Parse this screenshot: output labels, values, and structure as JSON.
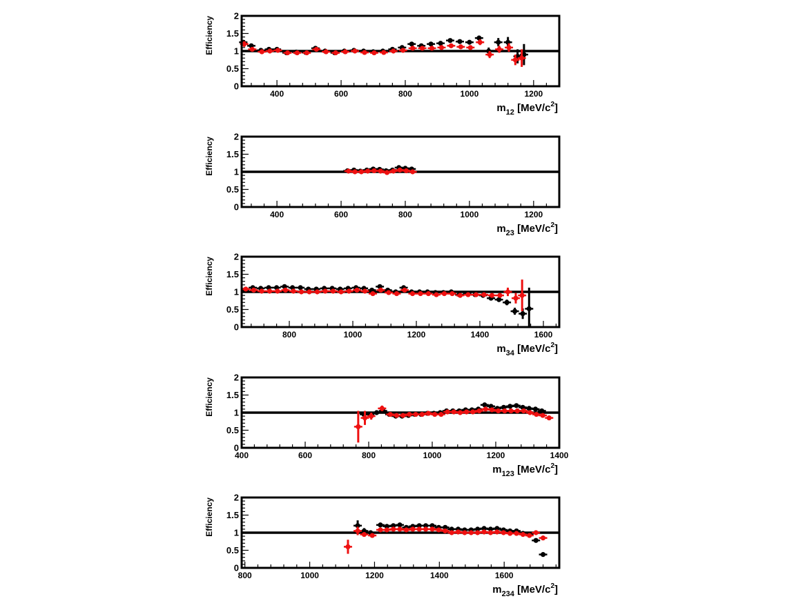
{
  "colors": {
    "series_black": "#000000",
    "series_red": "#ee1111",
    "reference_line": "#000000"
  },
  "chart_data": [
    {
      "type": "scatter",
      "ylabel": "Efficiency",
      "xlabel_main": "m",
      "xlabel_sub": "12",
      "xlabel_unit": " [MeV/c",
      "xlabel_sup": "2",
      "xlabel_close": "]",
      "xlim": [
        290,
        1280
      ],
      "ylim": [
        0,
        2
      ],
      "xticks": [
        400,
        600,
        800,
        1000,
        1200
      ],
      "yticks": [
        0,
        0.5,
        1,
        1.5,
        2
      ],
      "reference_y": 1,
      "series": [
        {
          "color": "black",
          "x": [
            295,
            320,
            350,
            375,
            400,
            430,
            460,
            490,
            520,
            550,
            580,
            610,
            640,
            670,
            700,
            730,
            760,
            790,
            820,
            850,
            880,
            910,
            940,
            970,
            1000,
            1030,
            1060,
            1090,
            1120,
            1150,
            1170
          ],
          "y": [
            1.25,
            1.15,
            1.02,
            1.05,
            1.05,
            0.95,
            0.97,
            0.96,
            1.08,
            1.0,
            0.95,
            1.0,
            1.02,
            1.0,
            0.98,
            1.0,
            1.05,
            1.1,
            1.2,
            1.15,
            1.2,
            1.22,
            1.3,
            1.27,
            1.25,
            1.37,
            1.0,
            1.25,
            1.25,
            0.85,
            0.9
          ],
          "err": [
            0.05,
            0.04,
            0.03,
            0.03,
            0.03,
            0.03,
            0.03,
            0.03,
            0.03,
            0.03,
            0.03,
            0.03,
            0.03,
            0.03,
            0.03,
            0.03,
            0.04,
            0.04,
            0.04,
            0.04,
            0.04,
            0.04,
            0.05,
            0.05,
            0.05,
            0.07,
            0.1,
            0.12,
            0.15,
            0.2,
            0.3
          ]
        },
        {
          "color": "red",
          "x": [
            298,
            323,
            353,
            378,
            403,
            433,
            463,
            493,
            523,
            553,
            583,
            613,
            643,
            673,
            703,
            733,
            763,
            793,
            823,
            853,
            883,
            913,
            943,
            973,
            1003,
            1033,
            1063,
            1093,
            1123,
            1143,
            1163
          ],
          "y": [
            1.2,
            1.05,
            0.98,
            1.0,
            1.02,
            0.95,
            0.95,
            0.95,
            1.05,
            0.98,
            0.95,
            0.98,
            1.0,
            0.96,
            0.95,
            0.96,
            1.0,
            1.02,
            1.08,
            1.08,
            1.08,
            1.1,
            1.15,
            1.12,
            1.1,
            1.25,
            0.9,
            1.05,
            1.1,
            0.75,
            0.8
          ],
          "err": [
            0.08,
            0.05,
            0.04,
            0.04,
            0.04,
            0.04,
            0.04,
            0.04,
            0.04,
            0.04,
            0.04,
            0.04,
            0.04,
            0.04,
            0.04,
            0.04,
            0.04,
            0.05,
            0.05,
            0.05,
            0.05,
            0.05,
            0.06,
            0.06,
            0.06,
            0.08,
            0.1,
            0.1,
            0.12,
            0.15,
            0.25
          ]
        }
      ]
    },
    {
      "type": "scatter",
      "ylabel": "Efficiency",
      "xlabel_main": "m",
      "xlabel_sub": "23",
      "xlabel_unit": " [MeV/c",
      "xlabel_sup": "2",
      "xlabel_close": "]",
      "xlim": [
        290,
        1280
      ],
      "ylim": [
        0,
        2
      ],
      "xticks": [
        400,
        600,
        800,
        1000,
        1200
      ],
      "yticks": [
        0,
        0.5,
        1,
        1.5,
        2
      ],
      "reference_y": 1,
      "series": [
        {
          "color": "black",
          "x": [
            620,
            640,
            660,
            680,
            700,
            720,
            740,
            760,
            780,
            800,
            820
          ],
          "y": [
            1.03,
            1.05,
            1.02,
            1.05,
            1.08,
            1.07,
            1.03,
            1.05,
            1.12,
            1.1,
            1.08
          ],
          "err": [
            0.03,
            0.03,
            0.03,
            0.03,
            0.03,
            0.03,
            0.03,
            0.03,
            0.03,
            0.03,
            0.03
          ]
        },
        {
          "color": "red",
          "x": [
            623,
            643,
            663,
            683,
            703,
            723,
            743,
            763,
            783,
            803,
            823
          ],
          "y": [
            1.02,
            1.0,
            1.0,
            1.02,
            1.03,
            1.02,
            0.98,
            1.02,
            1.05,
            1.03,
            1.0
          ],
          "err": [
            0.03,
            0.03,
            0.03,
            0.03,
            0.03,
            0.03,
            0.03,
            0.03,
            0.03,
            0.03,
            0.03
          ]
        }
      ]
    },
    {
      "type": "scatter",
      "ylabel": "Efficiency",
      "xlabel_main": "m",
      "xlabel_sub": "34",
      "xlabel_unit": " [MeV/c",
      "xlabel_sup": "2",
      "xlabel_close": "]",
      "xlim": [
        650,
        1650
      ],
      "ylim": [
        0,
        2
      ],
      "xticks": [
        800,
        1000,
        1200,
        1400,
        1600
      ],
      "yticks": [
        0,
        0.5,
        1,
        1.5,
        2
      ],
      "reference_y": 1,
      "series": [
        {
          "color": "black",
          "x": [
            660,
            685,
            710,
            735,
            760,
            785,
            810,
            835,
            860,
            885,
            910,
            935,
            960,
            985,
            1010,
            1035,
            1060,
            1085,
            1110,
            1135,
            1160,
            1185,
            1210,
            1235,
            1260,
            1285,
            1310,
            1335,
            1360,
            1385,
            1410,
            1435,
            1460,
            1485,
            1510,
            1535,
            1555
          ],
          "y": [
            1.05,
            1.12,
            1.1,
            1.12,
            1.12,
            1.15,
            1.12,
            1.12,
            1.08,
            1.08,
            1.1,
            1.1,
            1.08,
            1.1,
            1.12,
            1.1,
            1.05,
            1.15,
            1.05,
            1.0,
            1.12,
            1.0,
            1.0,
            1.0,
            0.98,
            0.98,
            1.0,
            0.92,
            0.95,
            0.92,
            0.9,
            0.82,
            0.78,
            0.7,
            0.45,
            0.38,
            0.52
          ],
          "err": [
            0.03,
            0.03,
            0.03,
            0.03,
            0.03,
            0.03,
            0.03,
            0.03,
            0.03,
            0.03,
            0.03,
            0.03,
            0.03,
            0.03,
            0.03,
            0.03,
            0.03,
            0.03,
            0.03,
            0.03,
            0.03,
            0.03,
            0.03,
            0.03,
            0.03,
            0.03,
            0.03,
            0.03,
            0.03,
            0.03,
            0.04,
            0.05,
            0.06,
            0.08,
            0.1,
            0.15,
            0.6
          ]
        },
        {
          "color": "red",
          "x": [
            663,
            688,
            713,
            738,
            763,
            788,
            813,
            838,
            863,
            888,
            913,
            938,
            963,
            988,
            1013,
            1038,
            1063,
            1088,
            1113,
            1138,
            1163,
            1188,
            1213,
            1238,
            1263,
            1288,
            1313,
            1338,
            1363,
            1388,
            1413,
            1438,
            1463,
            1488,
            1513,
            1533
          ],
          "y": [
            1.08,
            1.05,
            1.02,
            1.02,
            1.02,
            1.05,
            1.02,
            1.0,
            1.0,
            1.0,
            1.02,
            1.02,
            1.0,
            1.02,
            1.05,
            1.02,
            0.95,
            1.05,
            0.98,
            0.95,
            1.05,
            0.95,
            0.95,
            0.95,
            0.92,
            0.95,
            0.95,
            0.9,
            0.92,
            0.92,
            0.92,
            0.9,
            0.9,
            1.0,
            0.82,
            0.9
          ],
          "err": [
            0.04,
            0.03,
            0.03,
            0.03,
            0.03,
            0.03,
            0.03,
            0.03,
            0.03,
            0.03,
            0.03,
            0.03,
            0.03,
            0.03,
            0.03,
            0.03,
            0.03,
            0.03,
            0.03,
            0.03,
            0.03,
            0.03,
            0.03,
            0.03,
            0.03,
            0.03,
            0.03,
            0.03,
            0.03,
            0.03,
            0.04,
            0.05,
            0.06,
            0.12,
            0.15,
            0.45
          ]
        }
      ]
    },
    {
      "type": "scatter",
      "ylabel": "Efficiency",
      "xlabel_main": "m",
      "xlabel_sub": "123",
      "xlabel_unit": " [MeV/c",
      "xlabel_sup": "2",
      "xlabel_close": "]",
      "xlim": [
        400,
        1400
      ],
      "ylim": [
        0,
        2
      ],
      "xticks": [
        400,
        600,
        800,
        1000,
        1200,
        1400
      ],
      "yticks": [
        0,
        0.5,
        1,
        1.5,
        2
      ],
      "reference_y": 1,
      "series": [
        {
          "color": "black",
          "x": [
            785,
            805,
            825,
            845,
            865,
            885,
            905,
            925,
            945,
            965,
            985,
            1005,
            1025,
            1045,
            1065,
            1085,
            1105,
            1125,
            1145,
            1165,
            1185,
            1205,
            1225,
            1245,
            1265,
            1285,
            1305,
            1325,
            1345
          ],
          "y": [
            0.95,
            0.95,
            1.0,
            1.05,
            0.95,
            0.9,
            0.9,
            0.92,
            0.95,
            0.95,
            0.98,
            0.98,
            1.0,
            1.05,
            1.05,
            1.05,
            1.08,
            1.08,
            1.1,
            1.22,
            1.18,
            1.12,
            1.15,
            1.18,
            1.2,
            1.15,
            1.12,
            1.1,
            1.05
          ],
          "err": [
            0.05,
            0.05,
            0.04,
            0.04,
            0.04,
            0.03,
            0.03,
            0.03,
            0.03,
            0.03,
            0.03,
            0.03,
            0.03,
            0.03,
            0.03,
            0.03,
            0.03,
            0.03,
            0.03,
            0.04,
            0.04,
            0.04,
            0.04,
            0.04,
            0.04,
            0.04,
            0.04,
            0.05,
            0.05
          ]
        },
        {
          "color": "red",
          "x": [
            767,
            788,
            808,
            842,
            868,
            888,
            908,
            928,
            948,
            968,
            988,
            1008,
            1028,
            1048,
            1068,
            1088,
            1108,
            1128,
            1148,
            1168,
            1188,
            1208,
            1228,
            1248,
            1268,
            1288,
            1308,
            1328,
            1348,
            1368
          ],
          "y": [
            0.6,
            0.85,
            0.9,
            1.12,
            0.95,
            0.92,
            0.92,
            0.95,
            0.95,
            0.95,
            0.98,
            0.95,
            0.95,
            1.02,
            1.02,
            1.0,
            1.02,
            1.02,
            1.05,
            1.1,
            1.08,
            1.05,
            1.05,
            1.05,
            1.05,
            1.05,
            1.0,
            0.95,
            0.92,
            0.85
          ],
          "err": [
            0.45,
            0.2,
            0.1,
            0.08,
            0.05,
            0.04,
            0.04,
            0.04,
            0.04,
            0.04,
            0.04,
            0.04,
            0.04,
            0.04,
            0.04,
            0.04,
            0.04,
            0.04,
            0.04,
            0.05,
            0.05,
            0.05,
            0.05,
            0.05,
            0.05,
            0.05,
            0.05,
            0.05,
            0.05,
            0.06
          ]
        }
      ]
    },
    {
      "type": "scatter",
      "ylabel": "Efficiency",
      "xlabel_main": "m",
      "xlabel_sub": "234",
      "xlabel_unit": " [MeV/c",
      "xlabel_sup": "2",
      "xlabel_close": "]",
      "xlim": [
        790,
        1770
      ],
      "ylim": [
        0,
        2
      ],
      "xticks": [
        800,
        1000,
        1200,
        1400,
        1600
      ],
      "yticks": [
        0,
        0.5,
        1,
        1.5,
        2
      ],
      "reference_y": 1,
      "series": [
        {
          "color": "black",
          "x": [
            1148,
            1168,
            1188,
            1218,
            1238,
            1258,
            1278,
            1298,
            1318,
            1338,
            1358,
            1378,
            1398,
            1418,
            1438,
            1458,
            1478,
            1498,
            1518,
            1538,
            1558,
            1578,
            1598,
            1618,
            1638,
            1658,
            1678,
            1698,
            1720
          ],
          "y": [
            1.2,
            1.05,
            1.0,
            1.22,
            1.18,
            1.2,
            1.22,
            1.15,
            1.18,
            1.2,
            1.2,
            1.2,
            1.15,
            1.15,
            1.1,
            1.1,
            1.08,
            1.08,
            1.1,
            1.12,
            1.1,
            1.12,
            1.08,
            1.05,
            1.05,
            0.98,
            0.95,
            0.78,
            0.38
          ],
          "err": [
            0.15,
            0.08,
            0.05,
            0.05,
            0.04,
            0.04,
            0.04,
            0.04,
            0.04,
            0.04,
            0.04,
            0.04,
            0.04,
            0.04,
            0.04,
            0.04,
            0.04,
            0.04,
            0.04,
            0.04,
            0.04,
            0.04,
            0.04,
            0.04,
            0.04,
            0.04,
            0.05,
            0.05,
            0.05
          ]
        },
        {
          "color": "red",
          "x": [
            1118,
            1148,
            1168,
            1193,
            1218,
            1238,
            1258,
            1278,
            1298,
            1318,
            1338,
            1358,
            1378,
            1398,
            1418,
            1438,
            1458,
            1478,
            1498,
            1518,
            1538,
            1558,
            1578,
            1598,
            1618,
            1638,
            1658,
            1678,
            1698,
            1720
          ],
          "y": [
            0.6,
            1.05,
            0.95,
            0.92,
            1.08,
            1.08,
            1.1,
            1.1,
            1.08,
            1.1,
            1.1,
            1.1,
            1.1,
            1.08,
            1.05,
            1.0,
            1.02,
            1.0,
            1.0,
            1.0,
            1.02,
            1.0,
            1.02,
            1.0,
            0.98,
            0.98,
            0.95,
            0.92,
            1.0,
            0.85
          ],
          "err": [
            0.2,
            0.12,
            0.06,
            0.05,
            0.05,
            0.04,
            0.04,
            0.04,
            0.04,
            0.04,
            0.04,
            0.04,
            0.04,
            0.04,
            0.04,
            0.04,
            0.04,
            0.04,
            0.04,
            0.04,
            0.04,
            0.04,
            0.04,
            0.04,
            0.04,
            0.04,
            0.04,
            0.05,
            0.05,
            0.05
          ]
        }
      ]
    }
  ]
}
